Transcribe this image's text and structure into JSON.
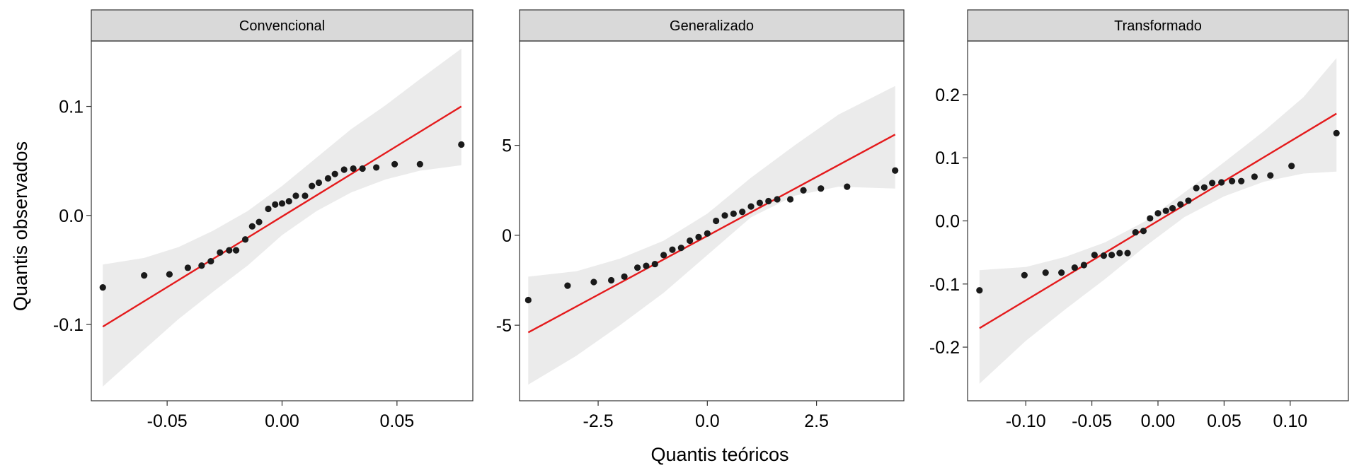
{
  "xlabel": "Quantis teóricos",
  "ylabel": "Quantis observados",
  "colors": {
    "line": "#e41a1c",
    "point": "#1a1a1a",
    "band": "#ebebeb",
    "strip": "#d9d9d9",
    "panel_border": "#333333"
  },
  "chart_data": [
    {
      "type": "scatter",
      "title": "Convencional",
      "xlim": [
        -0.083,
        0.083
      ],
      "ylim": [
        -0.17,
        0.16
      ],
      "xticks": [
        -0.05,
        0.0,
        0.05
      ],
      "xtick_labels": [
        "-0.05",
        "0.00",
        "0.05"
      ],
      "yticks": [
        -0.1,
        0.0,
        0.1
      ],
      "ytick_labels": [
        "-0.1",
        "0.0",
        "0.1"
      ],
      "reference_line": {
        "x": [
          -0.078,
          0.078
        ],
        "y": [
          -0.102,
          0.1
        ]
      },
      "band": {
        "x": [
          -0.078,
          -0.06,
          -0.045,
          -0.03,
          -0.015,
          0.0,
          0.015,
          0.03,
          0.045,
          0.06,
          0.078
        ],
        "lower": [
          -0.157,
          -0.123,
          -0.095,
          -0.07,
          -0.046,
          -0.018,
          0.004,
          0.021,
          0.033,
          0.041,
          0.046
        ],
        "upper": [
          -0.045,
          -0.039,
          -0.029,
          -0.014,
          0.004,
          0.027,
          0.053,
          0.079,
          0.101,
          0.125,
          0.153
        ]
      },
      "points": {
        "x": [
          -0.078,
          -0.06,
          -0.049,
          -0.041,
          -0.035,
          -0.031,
          -0.027,
          -0.023,
          -0.02,
          -0.016,
          -0.013,
          -0.01,
          -0.006,
          -0.003,
          0.0,
          0.003,
          0.006,
          0.01,
          0.013,
          0.016,
          0.02,
          0.023,
          0.027,
          0.031,
          0.035,
          0.041,
          0.049,
          0.06,
          0.078
        ],
        "y": [
          -0.066,
          -0.055,
          -0.054,
          -0.048,
          -0.046,
          -0.042,
          -0.034,
          -0.032,
          -0.032,
          -0.022,
          -0.01,
          -0.006,
          0.006,
          0.01,
          0.011,
          0.013,
          0.018,
          0.018,
          0.027,
          0.03,
          0.034,
          0.038,
          0.042,
          0.043,
          0.043,
          0.044,
          0.047,
          0.047,
          0.065
        ]
      }
    },
    {
      "type": "scatter",
      "title": "Generalizado",
      "xlim": [
        -4.3,
        4.5
      ],
      "ylim": [
        -9.2,
        10.8
      ],
      "xticks": [
        -2.5,
        0.0,
        2.5
      ],
      "xtick_labels": [
        "-2.5",
        "0.0",
        "2.5"
      ],
      "yticks": [
        -5,
        0,
        5
      ],
      "ytick_labels": [
        "-5",
        "0",
        "5"
      ],
      "reference_line": {
        "x": [
          -4.1,
          4.3
        ],
        "y": [
          -5.4,
          5.6
        ]
      },
      "band": {
        "x": [
          -4.1,
          -3.0,
          -2.0,
          -1.0,
          0.0,
          1.0,
          2.0,
          3.0,
          4.3
        ],
        "lower": [
          -8.3,
          -6.7,
          -5.0,
          -3.2,
          -1.1,
          1.0,
          2.2,
          2.7,
          2.6
        ],
        "upper": [
          -2.3,
          -2.0,
          -1.3,
          -0.3,
          1.2,
          3.2,
          5.0,
          6.7,
          8.3
        ]
      },
      "points": {
        "x": [
          -4.1,
          -3.2,
          -2.6,
          -2.2,
          -1.9,
          -1.6,
          -1.4,
          -1.2,
          -1.0,
          -0.8,
          -0.6,
          -0.4,
          -0.2,
          0.0,
          0.2,
          0.4,
          0.6,
          0.8,
          1.0,
          1.2,
          1.4,
          1.6,
          1.9,
          2.2,
          2.6,
          3.2,
          4.3
        ],
        "y": [
          -3.6,
          -2.8,
          -2.6,
          -2.5,
          -2.3,
          -1.8,
          -1.7,
          -1.6,
          -1.1,
          -0.8,
          -0.7,
          -0.3,
          -0.1,
          0.1,
          0.8,
          1.1,
          1.2,
          1.3,
          1.6,
          1.8,
          1.9,
          2.0,
          2.0,
          2.5,
          2.6,
          2.7,
          3.6
        ]
      }
    },
    {
      "type": "scatter",
      "title": "Transformado",
      "xlim": [
        -0.144,
        0.144
      ],
      "ylim": [
        -0.285,
        0.285
      ],
      "xticks": [
        -0.1,
        -0.05,
        0.0,
        0.05,
        0.1
      ],
      "xtick_labels": [
        "-0.10",
        "-0.05",
        "0.00",
        "0.05",
        "0.10"
      ],
      "yticks": [
        -0.2,
        -0.1,
        0.0,
        0.1,
        0.2
      ],
      "ytick_labels": [
        "-0.2",
        "-0.1",
        "0.0",
        "0.1",
        "0.2"
      ],
      "reference_line": {
        "x": [
          -0.135,
          0.135
        ],
        "y": [
          -0.17,
          0.17
        ]
      },
      "band": {
        "x": [
          -0.135,
          -0.1,
          -0.07,
          -0.04,
          -0.01,
          0.02,
          0.05,
          0.08,
          0.11,
          0.135
        ],
        "lower": [
          -0.258,
          -0.19,
          -0.14,
          -0.092,
          -0.041,
          0.006,
          0.039,
          0.062,
          0.075,
          0.078
        ],
        "upper": [
          -0.078,
          -0.073,
          -0.057,
          -0.034,
          -0.001,
          0.045,
          0.093,
          0.142,
          0.196,
          0.258
        ]
      },
      "points": {
        "x": [
          -0.135,
          -0.101,
          -0.085,
          -0.073,
          -0.063,
          -0.056,
          -0.048,
          -0.041,
          -0.035,
          -0.029,
          -0.023,
          -0.017,
          -0.011,
          -0.006,
          0.0,
          0.006,
          0.011,
          0.017,
          0.023,
          0.029,
          0.035,
          0.041,
          0.048,
          0.056,
          0.063,
          0.073,
          0.085,
          0.101,
          0.135
        ],
        "y": [
          -0.11,
          -0.086,
          -0.082,
          -0.082,
          -0.074,
          -0.07,
          -0.054,
          -0.055,
          -0.054,
          -0.051,
          -0.051,
          -0.018,
          -0.016,
          0.004,
          0.012,
          0.016,
          0.02,
          0.026,
          0.032,
          0.052,
          0.053,
          0.06,
          0.061,
          0.063,
          0.063,
          0.07,
          0.072,
          0.087,
          0.139
        ]
      }
    }
  ]
}
